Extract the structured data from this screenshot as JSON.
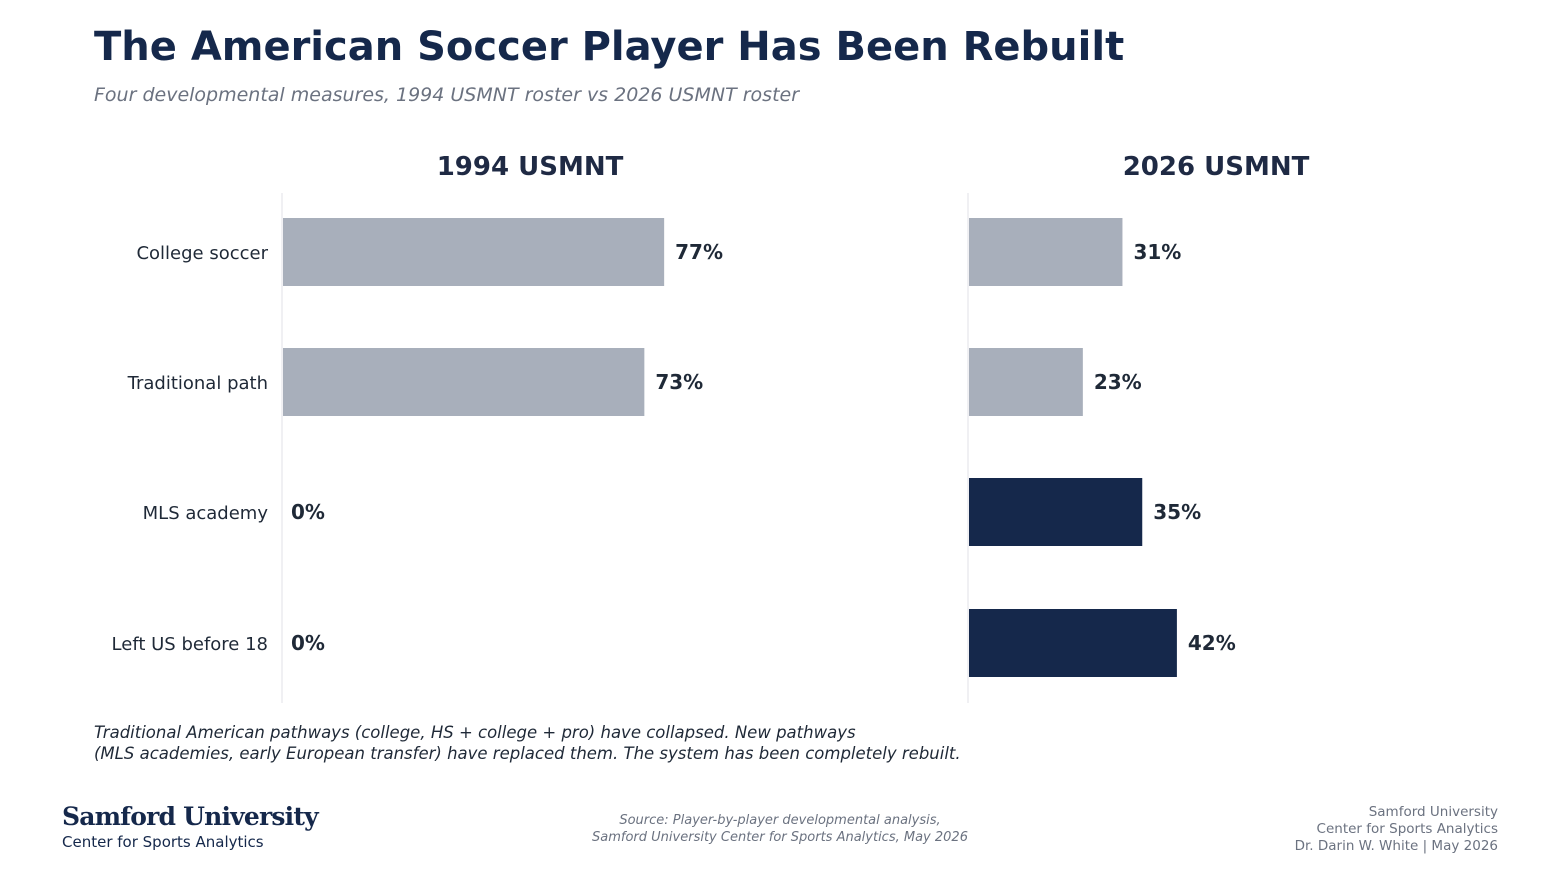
{
  "header": {
    "title": "The American Soccer Player Has Been Rebuilt",
    "subtitle": "Four developmental measures, 1994 USMNT roster vs 2026 USMNT roster"
  },
  "chart_data": {
    "type": "bar",
    "orientation": "horizontal",
    "categories": [
      "College soccer",
      "Traditional path",
      "MLS academy",
      "Left US before 18"
    ],
    "value_suffix": "%",
    "xlim": [
      0,
      100
    ],
    "panels": [
      {
        "name": "1994 USMNT",
        "values": [
          77,
          73,
          0,
          0
        ],
        "colors": [
          "#a8afbb",
          "#a8afbb",
          "#15284b",
          "#15284b"
        ]
      },
      {
        "name": "2026 USMNT",
        "values": [
          31,
          23,
          35,
          42
        ],
        "colors": [
          "#a8afbb",
          "#a8afbb",
          "#15284b",
          "#15284b"
        ]
      }
    ],
    "grid": false
  },
  "note": {
    "line1": "Traditional American pathways (college, HS + college + pro) have collapsed. New pathways",
    "line2": "(MLS academies, early European transfer) have replaced them. The system has been completely rebuilt."
  },
  "footer": {
    "logo_name": "Samford University",
    "logo_sub": "Center for Sports Analytics",
    "source_line1": "Source: Player-by-player developmental analysis,",
    "source_line2": "Samford University Center for Sports Analytics, May 2026",
    "credit_line1": "Samford University",
    "credit_line2": "Center for Sports Analytics",
    "credit_line3": "Dr. Darin W. White | May 2026"
  },
  "colors": {
    "navy": "#15284b",
    "gray_bar": "#a8afbb",
    "muted_text": "#6b7280"
  }
}
